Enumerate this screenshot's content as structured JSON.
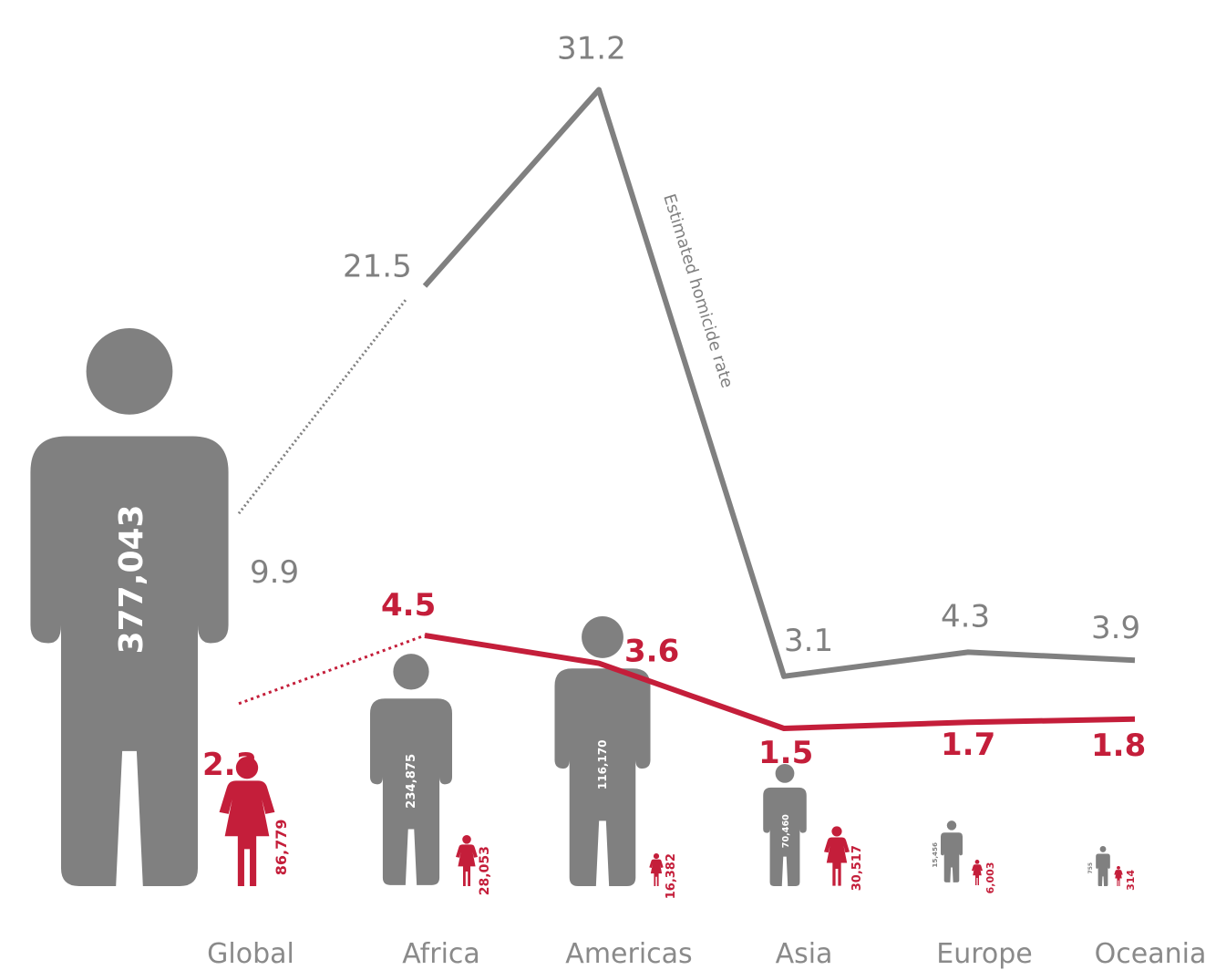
{
  "chart_data": {
    "type": "line",
    "categories": [
      "Global",
      "Africa",
      "Americas",
      "Asia",
      "Europe",
      "Oceania"
    ],
    "series": [
      {
        "values": [
          9.9,
          21.5,
          31.2,
          3.1,
          4.3,
          3.9
        ],
        "color": "#808080"
      },
      {
        "values": [
          2.3,
          4.5,
          3.6,
          1.5,
          1.7,
          1.8
        ],
        "color": "#c41e3a"
      }
    ],
    "value_labels_male": [
      "9.9",
      "21.5",
      "31.2",
      "3.1",
      "4.3",
      "3.9"
    ],
    "value_labels_female": [
      "2.3",
      "4.5",
      "3.6",
      "1.5",
      "1.7",
      "1.8"
    ],
    "line_annotation": "Estimated homicide rate",
    "figure_counts_male": [
      "377,043",
      "234,875",
      "116,170",
      "70,460",
      "15,456",
      "755"
    ],
    "figure_counts_female": [
      "86,779",
      "28,053",
      "16,382",
      "30,517",
      "6,003",
      "314"
    ],
    "colors": {
      "male": "#808080",
      "female": "#c41e3a"
    },
    "icons": {
      "male": "male-person-icon",
      "female": "female-person-icon"
    }
  }
}
